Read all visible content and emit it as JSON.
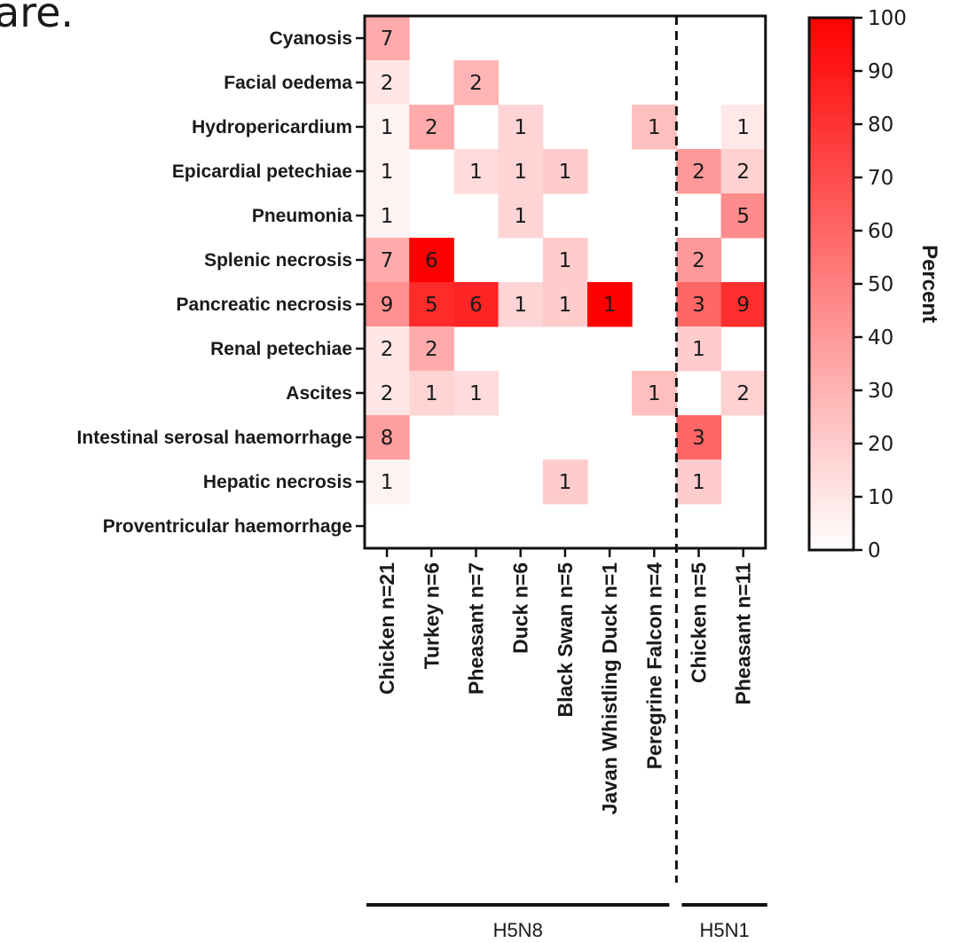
{
  "top_fragment": "are.",
  "chart_data": {
    "type": "heatmap",
    "rows": [
      "Cyanosis",
      "Facial oedema",
      "Hydropericardium",
      "Epicardial petechiae",
      "Pneumonia",
      "Splenic necrosis",
      "Pancreatic necrosis",
      "Renal petechiae",
      "Ascites",
      "Intestinal serosal haemorrhage",
      "Hepatic necrosis",
      "Proventricular haemorrhage"
    ],
    "columns": [
      "Chicken n=21",
      "Turkey n=6",
      "Pheasant n=7",
      "Duck n=6",
      "Black Swan n=5",
      "Javan Whistling Duck n=1",
      "Peregrine Falcon n=4",
      "Chicken n=5",
      "Pheasant n=11"
    ],
    "counts": [
      [
        7,
        null,
        null,
        null,
        null,
        null,
        null,
        null,
        null
      ],
      [
        2,
        null,
        2,
        null,
        null,
        null,
        null,
        null,
        null
      ],
      [
        1,
        2,
        null,
        1,
        null,
        null,
        1,
        null,
        1
      ],
      [
        1,
        null,
        1,
        1,
        1,
        null,
        null,
        2,
        2
      ],
      [
        1,
        null,
        null,
        1,
        null,
        null,
        null,
        null,
        5
      ],
      [
        7,
        6,
        null,
        null,
        1,
        null,
        null,
        2,
        null
      ],
      [
        9,
        5,
        6,
        1,
        1,
        1,
        null,
        3,
        9
      ],
      [
        2,
        2,
        null,
        null,
        null,
        null,
        null,
        1,
        null
      ],
      [
        2,
        1,
        1,
        null,
        null,
        null,
        1,
        null,
        2
      ],
      [
        8,
        null,
        null,
        null,
        null,
        null,
        null,
        3,
        null
      ],
      [
        1,
        null,
        null,
        null,
        1,
        null,
        null,
        1,
        null
      ],
      [
        null,
        null,
        null,
        null,
        null,
        null,
        null,
        null,
        null
      ]
    ],
    "percent": [
      [
        33,
        null,
        null,
        null,
        null,
        null,
        null,
        null,
        null
      ],
      [
        10,
        null,
        29,
        null,
        null,
        null,
        null,
        null,
        null
      ],
      [
        5,
        33,
        null,
        17,
        null,
        null,
        25,
        null,
        9
      ],
      [
        5,
        null,
        14,
        17,
        20,
        null,
        null,
        40,
        18
      ],
      [
        5,
        null,
        null,
        17,
        null,
        null,
        null,
        null,
        45
      ],
      [
        33,
        100,
        null,
        null,
        20,
        null,
        null,
        40,
        null
      ],
      [
        43,
        83,
        86,
        17,
        20,
        100,
        null,
        60,
        82
      ],
      [
        10,
        33,
        null,
        null,
        null,
        null,
        null,
        20,
        null
      ],
      [
        10,
        17,
        14,
        null,
        null,
        null,
        25,
        null,
        18
      ],
      [
        38,
        null,
        null,
        null,
        null,
        null,
        null,
        60,
        null
      ],
      [
        5,
        null,
        null,
        null,
        20,
        null,
        null,
        20,
        null
      ],
      [
        null,
        null,
        null,
        null,
        null,
        null,
        null,
        null,
        null
      ]
    ],
    "groups": [
      {
        "name": "H5N8",
        "columns": 7
      },
      {
        "name": "H5N1",
        "columns": 2
      }
    ],
    "colorbar": {
      "title": "Percent",
      "range": [
        0,
        100
      ],
      "ticks": [
        0,
        10,
        20,
        30,
        40,
        50,
        60,
        70,
        80,
        90,
        100
      ],
      "low_color": "#ffffff",
      "high_color": "#ff0000"
    },
    "divider": {
      "after_column": 7,
      "style": "dashed"
    }
  }
}
